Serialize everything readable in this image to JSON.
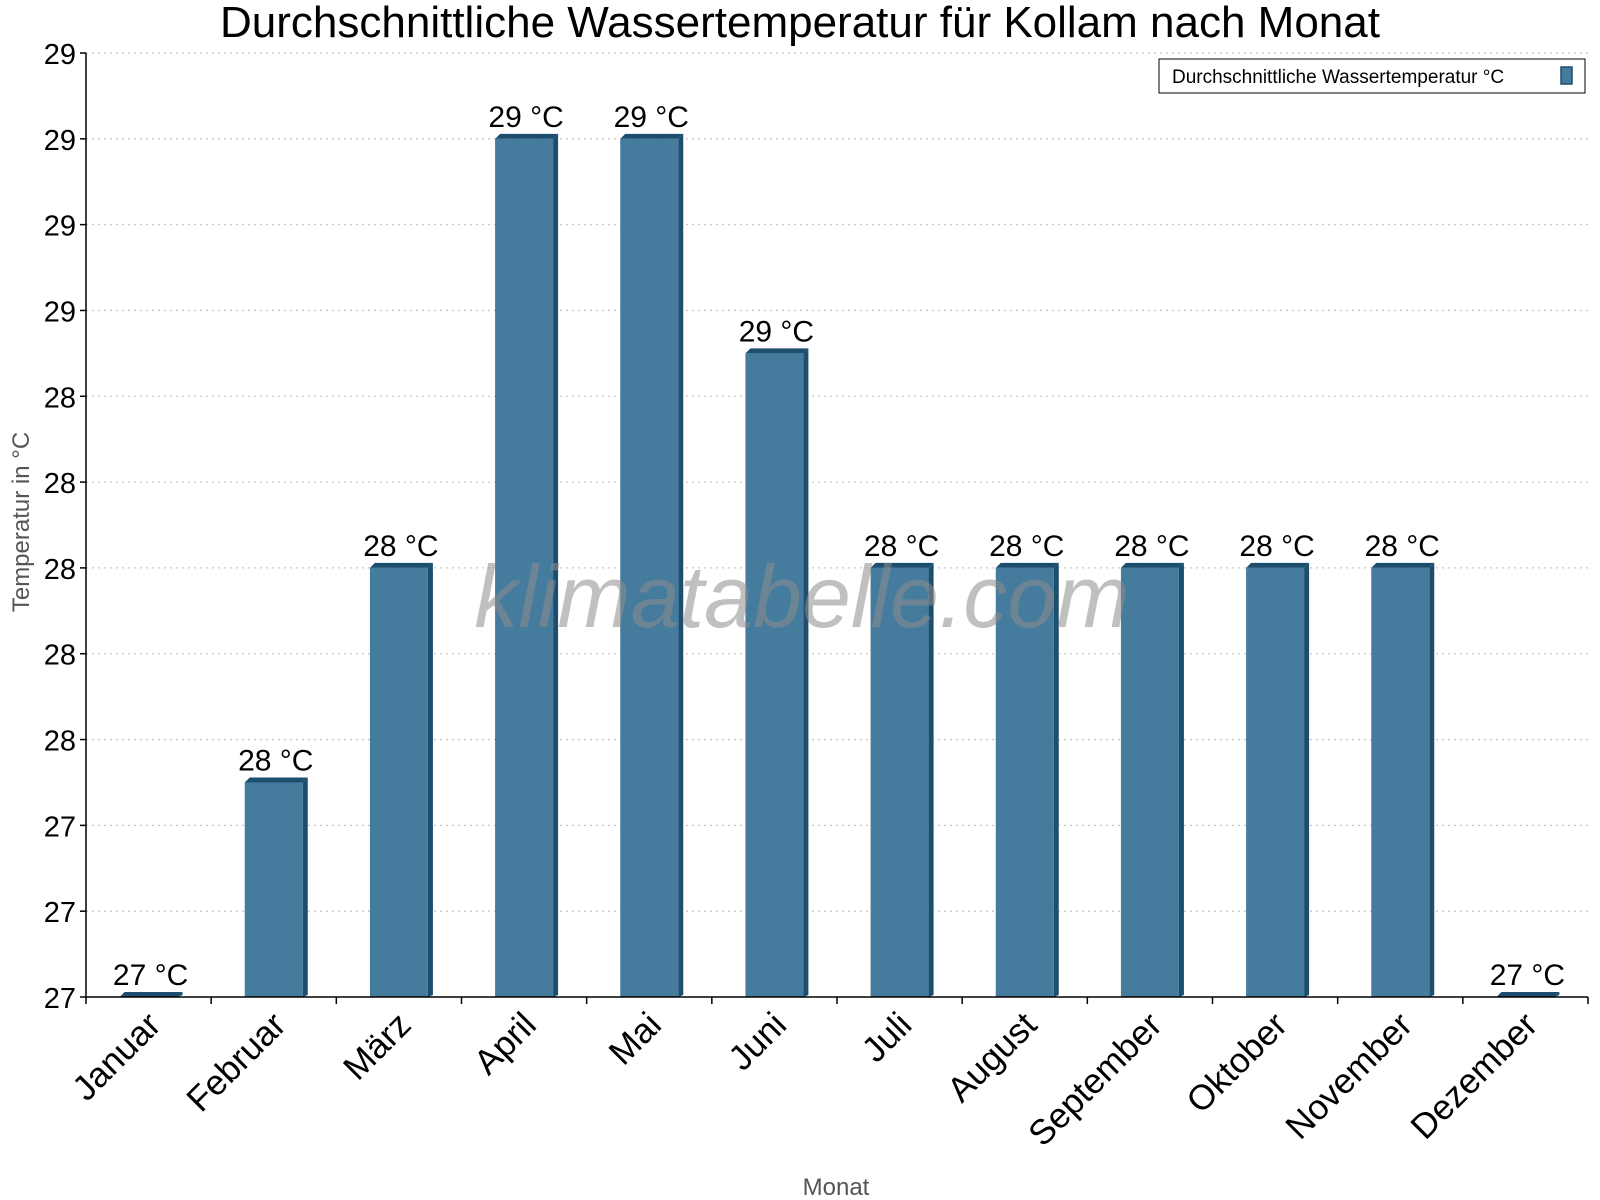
{
  "chart_data": {
    "type": "bar",
    "title": "Durchschnittliche Wassertemperatur für Kollam nach Monat",
    "xlabel": "Monat",
    "ylabel": "Temperatur in °C",
    "categories": [
      "Januar",
      "Februar",
      "März",
      "April",
      "Mai",
      "Juni",
      "Juli",
      "August",
      "September",
      "Oktober",
      "November",
      "Dezember"
    ],
    "series": [
      {
        "name": "Durchschnittliche Wassertemperatur °C",
        "values": [
          27.0,
          27.5,
          28.0,
          29.0,
          29.0,
          28.5,
          28.0,
          28.0,
          28.0,
          28.0,
          28.0,
          27.0
        ],
        "labels": [
          "27 °C",
          "28 °C",
          "28 °C",
          "29 °C",
          "29 °C",
          "29 °C",
          "28 °C",
          "28 °C",
          "28 °C",
          "28 °C",
          "28 °C",
          "27 °C"
        ],
        "color": "#457b9d",
        "edge_color": "#1d4e6e"
      }
    ],
    "ylim": [
      27.0,
      29.2
    ],
    "yticks": [
      27.0,
      27.2,
      27.4,
      27.6,
      27.8,
      28.0,
      28.2,
      28.4,
      28.6,
      28.8,
      29.0,
      29.2
    ],
    "ytick_labels": [
      "27",
      "27",
      "27",
      "28",
      "28",
      "28",
      "28",
      "28",
      "29",
      "29",
      "29",
      "29"
    ],
    "grid": true,
    "legend_position": "top-right"
  },
  "watermark": "klimatabelle.com",
  "colors": {
    "grid": "#c8c8c8",
    "axis": "#000000"
  }
}
